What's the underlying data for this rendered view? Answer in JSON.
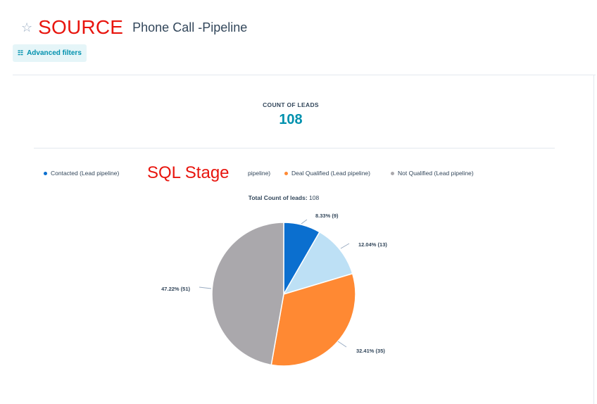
{
  "header": {
    "star_icon": "star-outline-icon",
    "overlay_label": "SOURCE",
    "title": "Phone Call -Pipeline"
  },
  "filters": {
    "label": "Advanced filters",
    "icon": "sliders-icon"
  },
  "metric": {
    "label": "COUNT OF LEADS",
    "value": "108"
  },
  "legend": {
    "items": [
      {
        "label": "Contacted (Lead pipeline)",
        "color": "#0b6fcf"
      },
      {
        "label": "pipeline)",
        "color": ""
      },
      {
        "label": "Deal Qualified (Lead pipeline)",
        "color": "#ff8933"
      },
      {
        "label": "Not Qualified (Lead pipeline)",
        "color": "#aaa8ac"
      }
    ],
    "overlay_label": "SQL Stage"
  },
  "total": {
    "label": "Total Count of leads:",
    "value": "108"
  },
  "chart_data": {
    "type": "pie",
    "total": 108,
    "slices": [
      {
        "value": 9,
        "percent": 8.33,
        "label": "8.33% (9)",
        "color": "#0b6fcf"
      },
      {
        "value": 13,
        "percent": 12.04,
        "label": "12.04% (13)",
        "color": "#bde0f5"
      },
      {
        "value": 35,
        "percent": 32.41,
        "label": "32.41% (35)",
        "color": "#ff8933"
      },
      {
        "value": 51,
        "percent": 47.22,
        "label": "47.22% (51)",
        "color": "#aaa8ac"
      }
    ]
  }
}
